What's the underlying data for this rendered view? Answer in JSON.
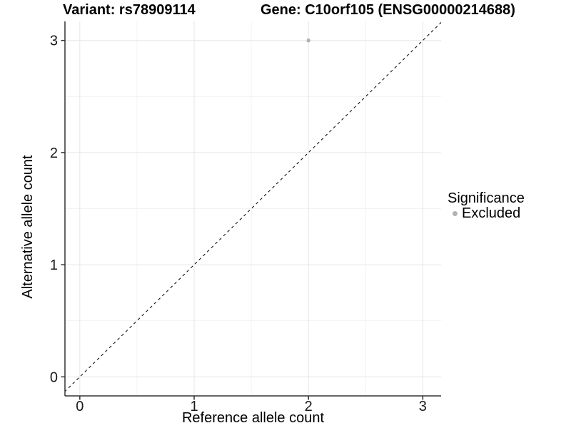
{
  "figure": {
    "title_left": "Variant: rs78909114",
    "title_right": "Gene: C10orf105 (ENSG00000214688)",
    "background": "#ffffff"
  },
  "chart_data": {
    "type": "scatter",
    "title": "Variant: rs78909114    Gene: C10orf105 (ENSG00000214688)",
    "xlabel": "Reference allele count",
    "ylabel": "Alternative allele count",
    "xlim": [
      -0.13,
      3.16
    ],
    "ylim": [
      -0.17,
      3.17
    ],
    "x_major_ticks": [
      0,
      1,
      2,
      3
    ],
    "y_major_ticks": [
      0,
      1,
      2,
      3
    ],
    "x_minor_gridlines": [
      0.5,
      1.5,
      2.5
    ],
    "y_minor_gridlines": [
      0.5,
      1.5,
      2.5
    ],
    "grid": true,
    "series": [
      {
        "name": "Excluded",
        "color": "#b2b2b2",
        "points": [
          {
            "x": 2,
            "y": 3
          }
        ]
      }
    ],
    "reference_line": {
      "type": "identity",
      "from": [
        -0.17,
        -0.17
      ],
      "to": [
        3.17,
        3.17
      ],
      "style": "dashed",
      "color": "#000000"
    },
    "legend": {
      "title": "Significance",
      "position": "right",
      "items": [
        {
          "label": "Excluded",
          "color": "#b2b2b2",
          "marker": "circle"
        }
      ]
    },
    "colors": {
      "major_grid": "#e6e6e6",
      "minor_grid": "#f2f2f2",
      "axis": "#333333",
      "tick_label": "#1a1a1a"
    }
  }
}
